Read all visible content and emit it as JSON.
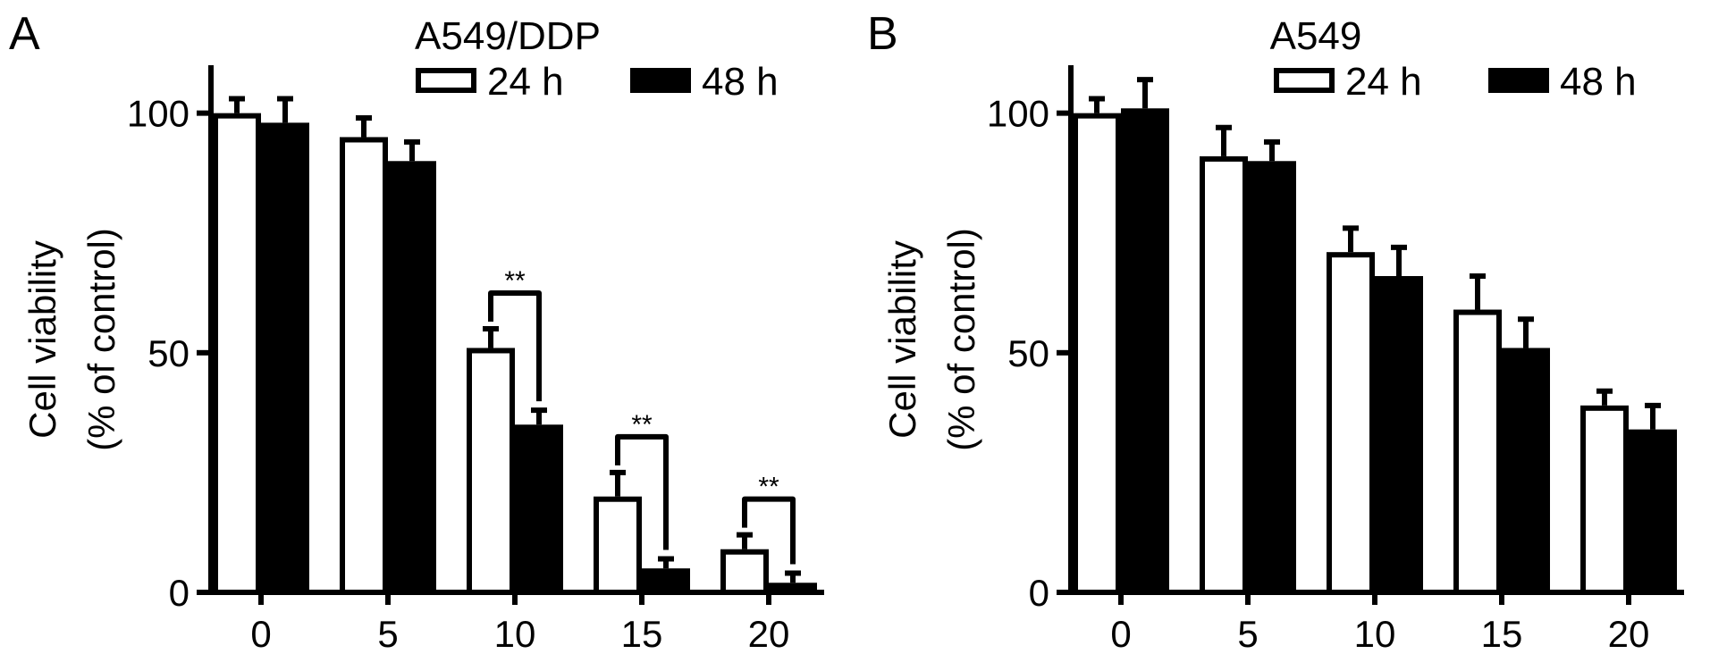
{
  "chart_data": [
    {
      "panel": "A",
      "title": "A549/DDP",
      "type": "bar",
      "categories": [
        "0",
        "5",
        "10",
        "15",
        "20"
      ],
      "series": [
        {
          "name": "24 h",
          "fill": "#ffffff",
          "values": [
            100,
            95,
            51,
            20,
            9
          ],
          "errors": [
            3,
            4,
            4,
            5,
            3
          ]
        },
        {
          "name": "48 h",
          "fill": "#000000",
          "values": [
            98,
            90,
            35,
            5,
            2
          ],
          "errors": [
            5,
            4,
            3,
            2,
            2
          ]
        }
      ],
      "ylabel_lines": [
        "Cell viability",
        "(% of control)"
      ],
      "yticks": [
        0,
        50,
        100
      ],
      "ylim": [
        0,
        110
      ],
      "significance": [
        {
          "category_index": 2,
          "label": "**"
        },
        {
          "category_index": 3,
          "label": "**"
        },
        {
          "category_index": 4,
          "label": "**"
        }
      ]
    },
    {
      "panel": "B",
      "title": "A549",
      "type": "bar",
      "categories": [
        "0",
        "5",
        "10",
        "15",
        "20"
      ],
      "series": [
        {
          "name": "24 h",
          "fill": "#ffffff",
          "values": [
            100,
            91,
            71,
            59,
            39
          ],
          "errors": [
            3,
            6,
            5,
            7,
            3
          ]
        },
        {
          "name": "48 h",
          "fill": "#000000",
          "values": [
            101,
            90,
            66,
            51,
            34
          ],
          "errors": [
            6,
            4,
            6,
            6,
            5
          ]
        }
      ],
      "ylabel_lines": [
        "Cell viability",
        "(% of control)"
      ],
      "yticks": [
        0,
        50,
        100
      ],
      "ylim": [
        0,
        110
      ],
      "significance": []
    }
  ]
}
